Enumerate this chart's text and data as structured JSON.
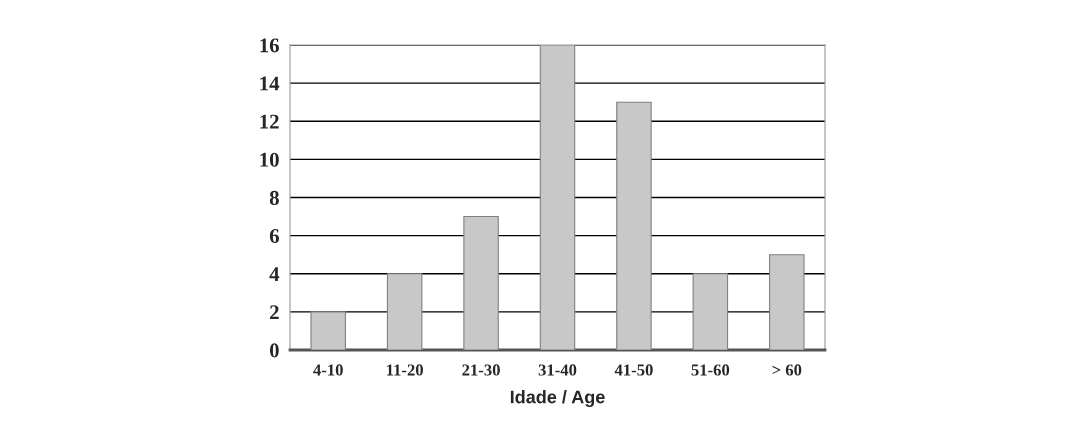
{
  "chart_data": {
    "type": "bar",
    "xlabel": "Idade / Age",
    "categories": [
      "4-10",
      "11-20",
      "21-30",
      "31-40",
      "41-50",
      "51-60",
      "> 60"
    ],
    "values": [
      2,
      4,
      7,
      16,
      13,
      4,
      5
    ],
    "color": "#c8c8c8",
    "ylim": [
      0,
      16
    ],
    "yticks": [
      0,
      2,
      4,
      6,
      8,
      10,
      12,
      14,
      16
    ],
    "grid": "y",
    "legend": false
  }
}
